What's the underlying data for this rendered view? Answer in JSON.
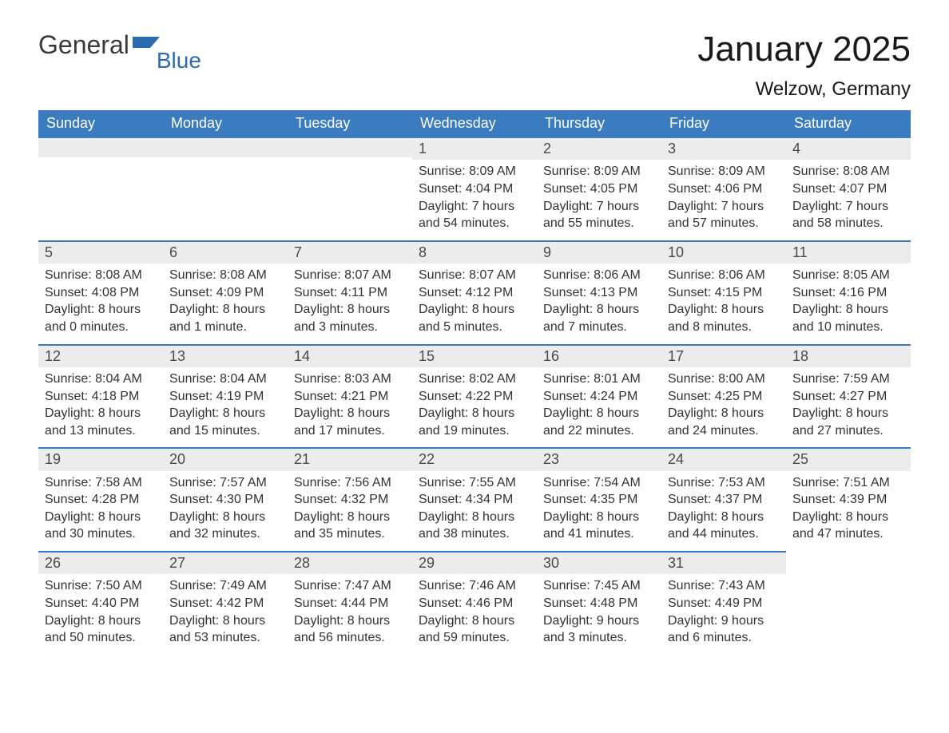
{
  "logo": {
    "text1": "General",
    "text2": "Blue"
  },
  "title": "January 2025",
  "location": "Welzow, Germany",
  "colors": {
    "header_bg": "#3b7bbf",
    "header_text": "#ffffff",
    "daynum_bg": "#ececec",
    "daynum_border": "#3b7bbf",
    "body_text": "#333333",
    "logo_gray": "#3a3a3a",
    "logo_blue": "#2b6cb0",
    "page_bg": "#ffffff"
  },
  "font": {
    "title_size_pt": 33,
    "location_size_pt": 18,
    "header_size_pt": 13,
    "daynum_size_pt": 13,
    "data_size_pt": 12
  },
  "weekdays": [
    "Sunday",
    "Monday",
    "Tuesday",
    "Wednesday",
    "Thursday",
    "Friday",
    "Saturday"
  ],
  "weeks": [
    [
      null,
      null,
      null,
      {
        "n": "1",
        "sunrise": "Sunrise: 8:09 AM",
        "sunset": "Sunset: 4:04 PM",
        "dl1": "Daylight: 7 hours",
        "dl2": "and 54 minutes."
      },
      {
        "n": "2",
        "sunrise": "Sunrise: 8:09 AM",
        "sunset": "Sunset: 4:05 PM",
        "dl1": "Daylight: 7 hours",
        "dl2": "and 55 minutes."
      },
      {
        "n": "3",
        "sunrise": "Sunrise: 8:09 AM",
        "sunset": "Sunset: 4:06 PM",
        "dl1": "Daylight: 7 hours",
        "dl2": "and 57 minutes."
      },
      {
        "n": "4",
        "sunrise": "Sunrise: 8:08 AM",
        "sunset": "Sunset: 4:07 PM",
        "dl1": "Daylight: 7 hours",
        "dl2": "and 58 minutes."
      }
    ],
    [
      {
        "n": "5",
        "sunrise": "Sunrise: 8:08 AM",
        "sunset": "Sunset: 4:08 PM",
        "dl1": "Daylight: 8 hours",
        "dl2": "and 0 minutes."
      },
      {
        "n": "6",
        "sunrise": "Sunrise: 8:08 AM",
        "sunset": "Sunset: 4:09 PM",
        "dl1": "Daylight: 8 hours",
        "dl2": "and 1 minute."
      },
      {
        "n": "7",
        "sunrise": "Sunrise: 8:07 AM",
        "sunset": "Sunset: 4:11 PM",
        "dl1": "Daylight: 8 hours",
        "dl2": "and 3 minutes."
      },
      {
        "n": "8",
        "sunrise": "Sunrise: 8:07 AM",
        "sunset": "Sunset: 4:12 PM",
        "dl1": "Daylight: 8 hours",
        "dl2": "and 5 minutes."
      },
      {
        "n": "9",
        "sunrise": "Sunrise: 8:06 AM",
        "sunset": "Sunset: 4:13 PM",
        "dl1": "Daylight: 8 hours",
        "dl2": "and 7 minutes."
      },
      {
        "n": "10",
        "sunrise": "Sunrise: 8:06 AM",
        "sunset": "Sunset: 4:15 PM",
        "dl1": "Daylight: 8 hours",
        "dl2": "and 8 minutes."
      },
      {
        "n": "11",
        "sunrise": "Sunrise: 8:05 AM",
        "sunset": "Sunset: 4:16 PM",
        "dl1": "Daylight: 8 hours",
        "dl2": "and 10 minutes."
      }
    ],
    [
      {
        "n": "12",
        "sunrise": "Sunrise: 8:04 AM",
        "sunset": "Sunset: 4:18 PM",
        "dl1": "Daylight: 8 hours",
        "dl2": "and 13 minutes."
      },
      {
        "n": "13",
        "sunrise": "Sunrise: 8:04 AM",
        "sunset": "Sunset: 4:19 PM",
        "dl1": "Daylight: 8 hours",
        "dl2": "and 15 minutes."
      },
      {
        "n": "14",
        "sunrise": "Sunrise: 8:03 AM",
        "sunset": "Sunset: 4:21 PM",
        "dl1": "Daylight: 8 hours",
        "dl2": "and 17 minutes."
      },
      {
        "n": "15",
        "sunrise": "Sunrise: 8:02 AM",
        "sunset": "Sunset: 4:22 PM",
        "dl1": "Daylight: 8 hours",
        "dl2": "and 19 minutes."
      },
      {
        "n": "16",
        "sunrise": "Sunrise: 8:01 AM",
        "sunset": "Sunset: 4:24 PM",
        "dl1": "Daylight: 8 hours",
        "dl2": "and 22 minutes."
      },
      {
        "n": "17",
        "sunrise": "Sunrise: 8:00 AM",
        "sunset": "Sunset: 4:25 PM",
        "dl1": "Daylight: 8 hours",
        "dl2": "and 24 minutes."
      },
      {
        "n": "18",
        "sunrise": "Sunrise: 7:59 AM",
        "sunset": "Sunset: 4:27 PM",
        "dl1": "Daylight: 8 hours",
        "dl2": "and 27 minutes."
      }
    ],
    [
      {
        "n": "19",
        "sunrise": "Sunrise: 7:58 AM",
        "sunset": "Sunset: 4:28 PM",
        "dl1": "Daylight: 8 hours",
        "dl2": "and 30 minutes."
      },
      {
        "n": "20",
        "sunrise": "Sunrise: 7:57 AM",
        "sunset": "Sunset: 4:30 PM",
        "dl1": "Daylight: 8 hours",
        "dl2": "and 32 minutes."
      },
      {
        "n": "21",
        "sunrise": "Sunrise: 7:56 AM",
        "sunset": "Sunset: 4:32 PM",
        "dl1": "Daylight: 8 hours",
        "dl2": "and 35 minutes."
      },
      {
        "n": "22",
        "sunrise": "Sunrise: 7:55 AM",
        "sunset": "Sunset: 4:34 PM",
        "dl1": "Daylight: 8 hours",
        "dl2": "and 38 minutes."
      },
      {
        "n": "23",
        "sunrise": "Sunrise: 7:54 AM",
        "sunset": "Sunset: 4:35 PM",
        "dl1": "Daylight: 8 hours",
        "dl2": "and 41 minutes."
      },
      {
        "n": "24",
        "sunrise": "Sunrise: 7:53 AM",
        "sunset": "Sunset: 4:37 PM",
        "dl1": "Daylight: 8 hours",
        "dl2": "and 44 minutes."
      },
      {
        "n": "25",
        "sunrise": "Sunrise: 7:51 AM",
        "sunset": "Sunset: 4:39 PM",
        "dl1": "Daylight: 8 hours",
        "dl2": "and 47 minutes."
      }
    ],
    [
      {
        "n": "26",
        "sunrise": "Sunrise: 7:50 AM",
        "sunset": "Sunset: 4:40 PM",
        "dl1": "Daylight: 8 hours",
        "dl2": "and 50 minutes."
      },
      {
        "n": "27",
        "sunrise": "Sunrise: 7:49 AM",
        "sunset": "Sunset: 4:42 PM",
        "dl1": "Daylight: 8 hours",
        "dl2": "and 53 minutes."
      },
      {
        "n": "28",
        "sunrise": "Sunrise: 7:47 AM",
        "sunset": "Sunset: 4:44 PM",
        "dl1": "Daylight: 8 hours",
        "dl2": "and 56 minutes."
      },
      {
        "n": "29",
        "sunrise": "Sunrise: 7:46 AM",
        "sunset": "Sunset: 4:46 PM",
        "dl1": "Daylight: 8 hours",
        "dl2": "and 59 minutes."
      },
      {
        "n": "30",
        "sunrise": "Sunrise: 7:45 AM",
        "sunset": "Sunset: 4:48 PM",
        "dl1": "Daylight: 9 hours",
        "dl2": "and 3 minutes."
      },
      {
        "n": "31",
        "sunrise": "Sunrise: 7:43 AM",
        "sunset": "Sunset: 4:49 PM",
        "dl1": "Daylight: 9 hours",
        "dl2": "and 6 minutes."
      },
      null
    ]
  ]
}
